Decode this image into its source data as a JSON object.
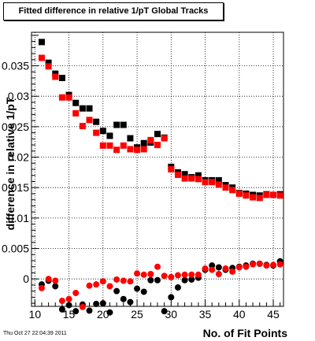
{
  "chart_data": {
    "type": "scatter",
    "title": "Fitted difference in relative 1/pT  Global Tracks",
    "xlabel": "No. of Fit Points",
    "ylabel": "difference in relative 1/pT",
    "xlim": [
      9.5,
      46.5
    ],
    "ylim": [
      -0.0045,
      0.0405
    ],
    "grid": true,
    "x_ticks": [
      10,
      15,
      20,
      25,
      30,
      35,
      40,
      45
    ],
    "x_tick_labels": [
      "10",
      "15",
      "20",
      "25",
      "30",
      "35",
      "40",
      "45"
    ],
    "y_ticks": [
      0,
      0.005,
      0.01,
      0.015,
      0.02,
      0.025,
      0.03,
      0.035
    ],
    "y_tick_labels": [
      "0",
      "0.005",
      "0.01",
      "0.015",
      "0.02",
      "0.025",
      "0.03",
      "0.035"
    ],
    "series": [
      {
        "color": "#000000",
        "marker": "square",
        "x": [
          11,
          12,
          13,
          14,
          15,
          16,
          17,
          18,
          19,
          20,
          21,
          22,
          23,
          24,
          25,
          26,
          27,
          28,
          29,
          30,
          31,
          32,
          33,
          34,
          35,
          36,
          37,
          38,
          39,
          40,
          41,
          42,
          43,
          44,
          45,
          46
        ],
        "y": [
          0.0389,
          0.0355,
          0.0337,
          0.033,
          0.0302,
          0.0289,
          0.028,
          0.028,
          0.0258,
          0.0243,
          0.0235,
          0.0253,
          0.0253,
          0.0231,
          0.0216,
          0.0223,
          0.0224,
          0.0238,
          0.0232,
          0.0184,
          0.0175,
          0.0172,
          0.0167,
          0.017,
          0.0162,
          0.0162,
          0.0162,
          0.0154,
          0.015,
          0.0141,
          0.014,
          0.0138,
          0.0137,
          0.0139,
          0.0138,
          0.0139
        ]
      },
      {
        "color": "#ff0000",
        "marker": "square",
        "x": [
          11,
          12,
          13,
          14,
          15,
          16,
          17,
          18,
          19,
          20,
          21,
          22,
          23,
          24,
          25,
          26,
          27,
          28,
          29,
          30,
          31,
          32,
          33,
          34,
          35,
          36,
          37,
          38,
          39,
          40,
          41,
          42,
          43,
          44,
          45,
          46
        ],
        "y": [
          0.0363,
          0.0349,
          0.0332,
          0.0298,
          0.0298,
          0.0272,
          0.0251,
          0.0261,
          0.024,
          0.0219,
          0.0219,
          0.0212,
          0.0219,
          0.0213,
          0.0212,
          0.0213,
          0.0228,
          0.022,
          0.0231,
          0.018,
          0.0171,
          0.0165,
          0.0165,
          0.0164,
          0.0159,
          0.0159,
          0.0155,
          0.015,
          0.0146,
          0.014,
          0.0137,
          0.0134,
          0.0133,
          0.0138,
          0.0138,
          0.0137
        ]
      },
      {
        "color": "#000000",
        "marker": "circle",
        "x": [
          11,
          12,
          13,
          14,
          15,
          16,
          17,
          18,
          19,
          20,
          21,
          22,
          23,
          24,
          25,
          26,
          27,
          28,
          29,
          30,
          31,
          32,
          33,
          34,
          35,
          36,
          37,
          38,
          39,
          40,
          41,
          42,
          43,
          44,
          45,
          46
        ],
        "y": [
          -0.0009,
          -0.0003,
          -0.0012,
          -0.005,
          -0.0043,
          -0.0053,
          -0.0042,
          -0.0052,
          -0.0041,
          -0.004,
          -0.0055,
          -0.002,
          -0.0033,
          -0.0038,
          -0.0016,
          -0.0021,
          -0.0002,
          -0.0002,
          -0.0053,
          -0.003,
          -0.0014,
          -0.0002,
          -0.0001,
          0.0002,
          0.0015,
          0.0022,
          0.0019,
          0.0015,
          0.0018,
          0.002,
          0.0022,
          0.0025,
          0.0025,
          0.0023,
          0.0022,
          0.0029
        ]
      },
      {
        "color": "#ff0000",
        "marker": "circle",
        "x": [
          11,
          12,
          13,
          14,
          15,
          16,
          17,
          18,
          19,
          20,
          21,
          22,
          23,
          24,
          25,
          26,
          27,
          28,
          29,
          30,
          31,
          32,
          33,
          34,
          35,
          36,
          37,
          38,
          39,
          40,
          41,
          42,
          43,
          44,
          45,
          46
        ],
        "y": [
          -0.0015,
          0.0,
          -0.0003,
          -0.0036,
          -0.0033,
          -0.0023,
          -0.0046,
          -0.0011,
          -0.0009,
          -0.0004,
          -0.0012,
          -0.0001,
          -0.0003,
          -0.0004,
          0.0009,
          0.0007,
          0.0008,
          0.002,
          0.0005,
          0.0003,
          0.0006,
          0.0007,
          0.0007,
          0.0007,
          0.0017,
          0.0015,
          0.0008,
          0.0017,
          0.0012,
          0.0019,
          0.002,
          0.0024,
          0.0025,
          0.0022,
          0.0023,
          0.0024
        ]
      }
    ]
  },
  "footer_text": "Thu Oct 27 22:04:39 2011"
}
